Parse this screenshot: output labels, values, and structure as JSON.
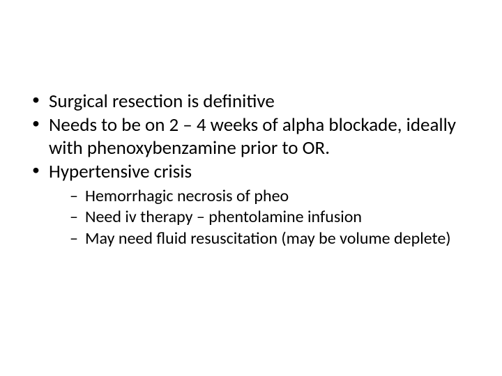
{
  "slide": {
    "background_color": "#ffffff",
    "text_color": "#000000",
    "font_family": "Calibri",
    "bullets": [
      {
        "text": "Surgical resection is definitive",
        "children": []
      },
      {
        "text": "Needs to be on 2 – 4 weeks of alpha blockade, ideally with phenoxybenzamine prior to OR.",
        "children": []
      },
      {
        "text": "Hypertensive crisis",
        "children": [
          {
            "text": "Hemorrhagic necrosis of pheo"
          },
          {
            "text": "Need iv therapy – phentolamine infusion"
          },
          {
            "text": "May need fluid resuscitation (may be volume deplete)"
          }
        ]
      }
    ],
    "level1_fontsize": 27,
    "level2_fontsize": 24
  }
}
